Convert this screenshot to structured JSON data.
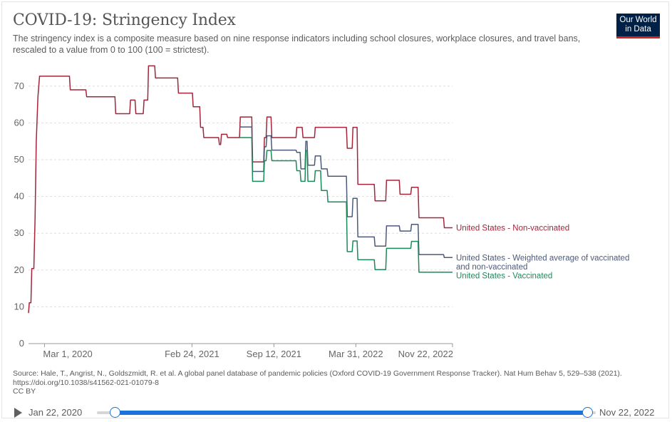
{
  "header": {
    "title": "COVID-19: Stringency Index",
    "subtitle": "The stringency index is a composite measure based on nine response indicators including school closures, workplace closures, and travel bans, rescaled to a value from 0 to 100 (100 = strictest).",
    "logo_line1": "Our World",
    "logo_line2": "in Data"
  },
  "footer": {
    "source": "Source: Hale, T., Angrist, N., Goldszmidt, R. et al. A global panel database of pandemic policies (Oxford COVID-19 Government Response Tracker). Nat Hum Behav 5, 529–538 (2021). https://doi.org/10.1038/s41562-021-01079-8",
    "license": "CC BY"
  },
  "timeline": {
    "start_label": "Jan 22, 2020",
    "end_label": "Nov 22, 2022"
  },
  "chart_data": {
    "type": "line",
    "title": "COVID-19: Stringency Index",
    "xlabel": "",
    "ylabel": "",
    "ylim": [
      0,
      75
    ],
    "grid": true,
    "x_domain": [
      "2020-01-22",
      "2022-11-22"
    ],
    "yticks": [
      0,
      10,
      20,
      30,
      40,
      50,
      60,
      70
    ],
    "xticks": [
      {
        "date": "2020-03-01",
        "label": "Mar 1, 2020"
      },
      {
        "date": "2021-02-24",
        "label": "Feb 24, 2021"
      },
      {
        "date": "2021-09-12",
        "label": "Sep 12, 2021"
      },
      {
        "date": "2022-03-31",
        "label": "Mar 31, 2022"
      },
      {
        "date": "2022-11-22",
        "label": "Nov 22, 2022"
      }
    ],
    "series": [
      {
        "name": "United States - Non-vaccinated",
        "color": "#a2253a",
        "points": [
          [
            "2020-01-22",
            8.3
          ],
          [
            "2020-01-24",
            11.1
          ],
          [
            "2020-01-28",
            11.1
          ],
          [
            "2020-01-30",
            20.4
          ],
          [
            "2020-02-04",
            20.4
          ],
          [
            "2020-02-07",
            34
          ],
          [
            "2020-02-10",
            55
          ],
          [
            "2020-02-14",
            67
          ],
          [
            "2020-02-18",
            72.7
          ],
          [
            "2020-05-01",
            72.7
          ],
          [
            "2020-05-03",
            69
          ],
          [
            "2020-06-10",
            69
          ],
          [
            "2020-06-12",
            67.1
          ],
          [
            "2020-08-20",
            67.1
          ],
          [
            "2020-08-22",
            62.5
          ],
          [
            "2020-09-25",
            62.5
          ],
          [
            "2020-09-27",
            66.2
          ],
          [
            "2020-10-08",
            66.2
          ],
          [
            "2020-10-10",
            62.5
          ],
          [
            "2020-10-28",
            62.5
          ],
          [
            "2020-10-30",
            66.2
          ],
          [
            "2020-11-08",
            66.2
          ],
          [
            "2020-11-10",
            75.5
          ],
          [
            "2020-11-25",
            75.5
          ],
          [
            "2020-11-27",
            72.2
          ],
          [
            "2021-01-20",
            72.2
          ],
          [
            "2021-01-22",
            68.1
          ],
          [
            "2021-02-25",
            68.1
          ],
          [
            "2021-02-27",
            64.4
          ],
          [
            "2021-03-15",
            64.4
          ],
          [
            "2021-03-17",
            58.8
          ],
          [
            "2021-03-23",
            58.8
          ],
          [
            "2021-03-25",
            56
          ],
          [
            "2021-04-30",
            56
          ],
          [
            "2021-05-02",
            54.1
          ],
          [
            "2021-05-05",
            54.1
          ],
          [
            "2021-05-07",
            56.9
          ],
          [
            "2021-05-20",
            56.9
          ],
          [
            "2021-05-22",
            56
          ],
          [
            "2021-06-20",
            56
          ],
          [
            "2021-06-22",
            61.6
          ],
          [
            "2021-07-20",
            61.6
          ],
          [
            "2021-07-22",
            49.4
          ],
          [
            "2021-08-18",
            49.4
          ],
          [
            "2021-08-20",
            56
          ],
          [
            "2021-08-24",
            56
          ],
          [
            "2021-08-26",
            61.6
          ],
          [
            "2021-09-05",
            61.6
          ],
          [
            "2021-09-07",
            56
          ],
          [
            "2021-11-05",
            56
          ],
          [
            "2021-11-07",
            58.8
          ],
          [
            "2021-11-20",
            58.8
          ],
          [
            "2021-11-22",
            56
          ],
          [
            "2021-12-20",
            56
          ],
          [
            "2021-12-22",
            58.8
          ],
          [
            "2022-03-08",
            58.8
          ],
          [
            "2022-03-10",
            53.1
          ],
          [
            "2022-03-22",
            53.1
          ],
          [
            "2022-03-24",
            58.8
          ],
          [
            "2022-04-03",
            58.8
          ],
          [
            "2022-04-05",
            43.3
          ],
          [
            "2022-05-15",
            43.3
          ],
          [
            "2022-05-17",
            38.8
          ],
          [
            "2022-06-12",
            38.8
          ],
          [
            "2022-06-14",
            44.4
          ],
          [
            "2022-07-15",
            44.4
          ],
          [
            "2022-07-17",
            40.6
          ],
          [
            "2022-08-12",
            40.6
          ],
          [
            "2022-08-14",
            42.5
          ],
          [
            "2022-08-30",
            42.5
          ],
          [
            "2022-09-01",
            34.2
          ],
          [
            "2022-10-31",
            34.2
          ],
          [
            "2022-11-02",
            31.5
          ],
          [
            "2022-11-22",
            31.5
          ]
        ]
      },
      {
        "name": "United States - Weighted average of vaccinated and non-vaccinated",
        "color": "#4c5a78",
        "points": [
          [
            "2021-06-20",
            58.9
          ],
          [
            "2021-07-20",
            58.9
          ],
          [
            "2021-07-22",
            46.8
          ],
          [
            "2021-08-18",
            46.8
          ],
          [
            "2021-08-20",
            53.5
          ],
          [
            "2021-08-24",
            53.5
          ],
          [
            "2021-08-26",
            56.5
          ],
          [
            "2021-09-05",
            56.5
          ],
          [
            "2021-09-07",
            52.6
          ],
          [
            "2021-11-05",
            52.6
          ],
          [
            "2021-11-07",
            52
          ],
          [
            "2021-11-15",
            52
          ],
          [
            "2021-11-17",
            47.5
          ],
          [
            "2021-11-27",
            47.5
          ],
          [
            "2021-11-29",
            55
          ],
          [
            "2021-12-02",
            55
          ],
          [
            "2021-12-04",
            48.5
          ],
          [
            "2021-12-20",
            48.5
          ],
          [
            "2021-12-22",
            51
          ],
          [
            "2022-01-04",
            51
          ],
          [
            "2022-01-06",
            47.5
          ],
          [
            "2022-01-20",
            47.5
          ],
          [
            "2022-01-22",
            45.5
          ],
          [
            "2022-03-08",
            45.5
          ],
          [
            "2022-03-10",
            34.5
          ],
          [
            "2022-03-22",
            34.5
          ],
          [
            "2022-03-24",
            39.5
          ],
          [
            "2022-04-03",
            39.5
          ],
          [
            "2022-04-05",
            29
          ],
          [
            "2022-05-15",
            29
          ],
          [
            "2022-05-17",
            26.5
          ],
          [
            "2022-06-12",
            26.5
          ],
          [
            "2022-06-14",
            32
          ],
          [
            "2022-07-15",
            32
          ],
          [
            "2022-07-17",
            30.6
          ],
          [
            "2022-08-12",
            30.6
          ],
          [
            "2022-08-14",
            32.4
          ],
          [
            "2022-08-30",
            32.4
          ],
          [
            "2022-09-01",
            24.2
          ],
          [
            "2022-10-31",
            24.2
          ],
          [
            "2022-11-02",
            23.4
          ],
          [
            "2022-11-22",
            23.4
          ]
        ]
      },
      {
        "name": "United States - Vaccinated",
        "color": "#1b8a5a",
        "points": [
          [
            "2021-06-20",
            56
          ],
          [
            "2021-07-20",
            56
          ],
          [
            "2021-07-22",
            44.1
          ],
          [
            "2021-08-18",
            44.1
          ],
          [
            "2021-08-20",
            49.7
          ],
          [
            "2021-08-24",
            49.7
          ],
          [
            "2021-08-26",
            52.5
          ],
          [
            "2021-09-05",
            52.5
          ],
          [
            "2021-09-07",
            49.7
          ],
          [
            "2021-11-05",
            49.7
          ],
          [
            "2021-11-07",
            47
          ],
          [
            "2021-11-15",
            47
          ],
          [
            "2021-11-17",
            44.1
          ],
          [
            "2021-11-27",
            44.1
          ],
          [
            "2021-11-29",
            52.5
          ],
          [
            "2021-12-02",
            52.5
          ],
          [
            "2021-12-04",
            44.1
          ],
          [
            "2021-12-20",
            44.1
          ],
          [
            "2021-12-22",
            47
          ],
          [
            "2022-01-04",
            47
          ],
          [
            "2022-01-06",
            41.6
          ],
          [
            "2022-01-20",
            41.6
          ],
          [
            "2022-01-22",
            38.5
          ],
          [
            "2022-03-08",
            38.5
          ],
          [
            "2022-03-10",
            25
          ],
          [
            "2022-03-22",
            25
          ],
          [
            "2022-03-24",
            27.9
          ],
          [
            "2022-04-03",
            27.9
          ],
          [
            "2022-04-05",
            22.8
          ],
          [
            "2022-05-15",
            22.8
          ],
          [
            "2022-05-17",
            20.1
          ],
          [
            "2022-06-12",
            20.1
          ],
          [
            "2022-06-14",
            25.9
          ],
          [
            "2022-07-15",
            25.9
          ],
          [
            "2022-08-12",
            25.9
          ],
          [
            "2022-08-14",
            27.8
          ],
          [
            "2022-08-30",
            27.8
          ],
          [
            "2022-09-01",
            19.4
          ],
          [
            "2022-11-22",
            19.4
          ]
        ]
      }
    ],
    "end_labels": [
      {
        "series": 0,
        "lines": [
          "United States - Non-vaccinated"
        ]
      },
      {
        "series": 1,
        "lines": [
          "United States - Weighted average of vaccinated",
          "and non-vaccinated"
        ]
      },
      {
        "series": 2,
        "lines": [
          "United States - Vaccinated"
        ]
      }
    ]
  }
}
